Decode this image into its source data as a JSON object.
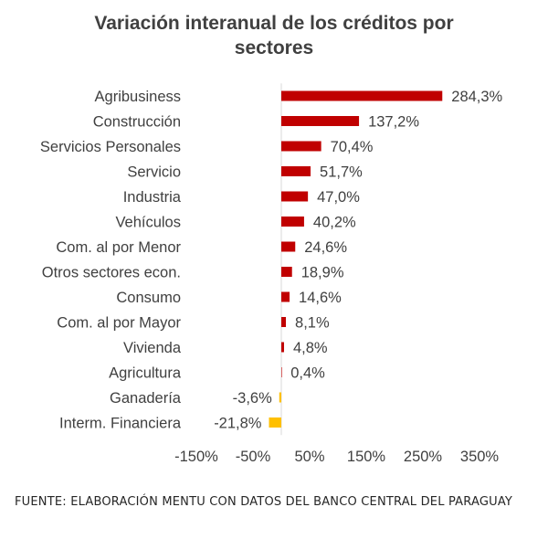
{
  "chart_data": {
    "type": "bar",
    "orientation": "horizontal",
    "title_lines": [
      "Variación interanual de los créditos por",
      "sectores"
    ],
    "categories": [
      "Agribusiness",
      "Construcción",
      "Servicios Personales",
      "Servicio",
      "Industria",
      "Vehículos",
      "Com. al por Menor",
      "Otros sectores econ.",
      "Consumo",
      "Com. al por Mayor",
      "Vivienda",
      "Agricultura",
      "Ganadería",
      "Interm. Financiera"
    ],
    "values": [
      284.3,
      137.2,
      70.4,
      51.7,
      47.0,
      40.2,
      24.6,
      18.9,
      14.6,
      8.1,
      4.8,
      0.4,
      -3.6,
      -21.8
    ],
    "data_labels": [
      "284,3%",
      "137,2%",
      "70,4%",
      "51,7%",
      "47,0%",
      "40,2%",
      "24,6%",
      "18,9%",
      "14,6%",
      "8,1%",
      "4,8%",
      "0,4%",
      "-3,6%",
      "-21,8%"
    ],
    "x_ticks": [
      -150,
      -50,
      50,
      150,
      250,
      350
    ],
    "x_tick_labels": [
      "-150%",
      "-50%",
      "50%",
      "150%",
      "250%",
      "350%"
    ],
    "xlim": [
      -150,
      350
    ],
    "grid": false,
    "legend": "none",
    "colors": {
      "positive": "#c00000",
      "negative": "#ffc000"
    }
  },
  "source_note": "FUENTE: ELABORACIÓN MENTU CON DATOS DEL BANCO CENTRAL DEL PARAGUAY"
}
